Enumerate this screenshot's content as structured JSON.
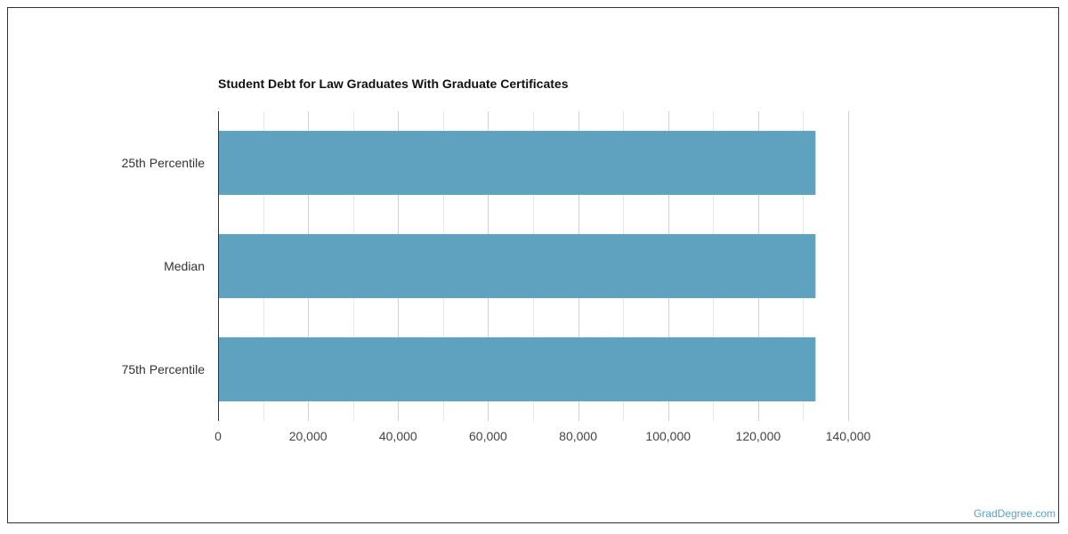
{
  "chart_data": {
    "type": "bar",
    "orientation": "horizontal",
    "title": "Student Debt for Law Graduates With Graduate Certificates",
    "xlabel": "",
    "ylabel": "",
    "categories": [
      "25th Percentile",
      "Median",
      "75th Percentile"
    ],
    "values": [
      132750,
      132750,
      132750
    ],
    "xlim": [
      0,
      140000
    ],
    "xticks": [
      0,
      20000,
      40000,
      60000,
      80000,
      100000,
      120000,
      140000
    ],
    "xtick_labels": [
      "0",
      "20,000",
      "40,000",
      "60,000",
      "80,000",
      "100,000",
      "120,000",
      "140,000"
    ],
    "grid": true,
    "bar_color": "#5ea2bf"
  },
  "watermark": "GradDegree.com"
}
